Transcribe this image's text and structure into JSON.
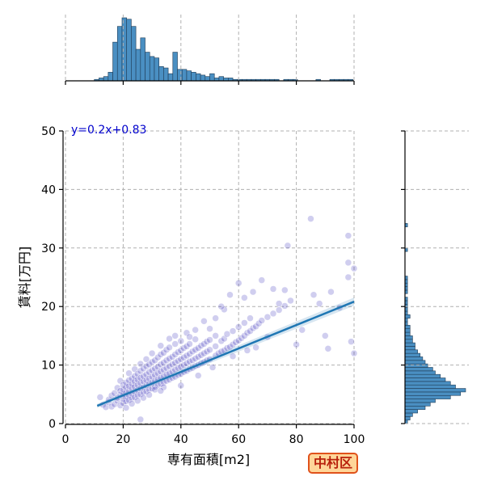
{
  "chart_data": {
    "type": "scatter",
    "xlabel": "専有面積[m2]",
    "ylabel": "賃料[万円]",
    "xlim": [
      0,
      100
    ],
    "ylim": [
      0,
      50
    ],
    "x_ticks": [
      0,
      20,
      40,
      60,
      80,
      100
    ],
    "y_ticks": [
      0,
      10,
      20,
      30,
      40,
      50
    ],
    "grid": true,
    "regression": {
      "slope": 0.2,
      "intercept": 0.83,
      "x_range": [
        11,
        100
      ],
      "label": "y=0.2x+0.83"
    },
    "ward_label": "中村区",
    "points": [
      [
        12,
        4.5
      ],
      [
        13,
        3.2
      ],
      [
        14,
        2.8
      ],
      [
        15,
        3.6
      ],
      [
        15,
        4.1
      ],
      [
        16,
        2.9
      ],
      [
        16,
        4.8
      ],
      [
        17,
        3.3
      ],
      [
        17,
        5.2
      ],
      [
        18,
        3.9
      ],
      [
        18,
        4.4
      ],
      [
        18,
        6.1
      ],
      [
        19,
        3.1
      ],
      [
        19,
        4.9
      ],
      [
        19,
        5.6
      ],
      [
        19,
        7.3
      ],
      [
        20,
        3.5
      ],
      [
        20,
        4.2
      ],
      [
        20,
        5.0
      ],
      [
        20,
        5.8
      ],
      [
        20,
        6.6
      ],
      [
        21,
        3.8
      ],
      [
        21,
        4.6
      ],
      [
        21,
        5.3
      ],
      [
        21,
        6.2
      ],
      [
        21,
        7.0
      ],
      [
        22,
        4.0
      ],
      [
        22,
        4.8
      ],
      [
        22,
        5.5
      ],
      [
        22,
        6.4
      ],
      [
        22,
        7.4
      ],
      [
        22,
        8.6
      ],
      [
        23,
        4.3
      ],
      [
        23,
        5.1
      ],
      [
        23,
        6.0
      ],
      [
        23,
        6.8
      ],
      [
        23,
        7.7
      ],
      [
        24,
        4.5
      ],
      [
        24,
        5.4
      ],
      [
        24,
        6.3
      ],
      [
        24,
        7.2
      ],
      [
        24,
        8.1
      ],
      [
        24,
        9.3
      ],
      [
        25,
        4.8
      ],
      [
        25,
        5.7
      ],
      [
        25,
        6.6
      ],
      [
        25,
        7.5
      ],
      [
        25,
        8.5
      ],
      [
        26,
        5.0
      ],
      [
        26,
        6.0
      ],
      [
        26,
        6.9
      ],
      [
        26,
        7.8
      ],
      [
        26,
        9.0
      ],
      [
        26,
        10.2
      ],
      [
        27,
        5.3
      ],
      [
        27,
        6.2
      ],
      [
        27,
        7.2
      ],
      [
        27,
        8.1
      ],
      [
        27,
        9.4
      ],
      [
        28,
        5.5
      ],
      [
        28,
        6.5
      ],
      [
        28,
        7.4
      ],
      [
        28,
        8.4
      ],
      [
        28,
        9.8
      ],
      [
        28,
        11.0
      ],
      [
        29,
        5.8
      ],
      [
        29,
        6.8
      ],
      [
        29,
        7.7
      ],
      [
        29,
        8.8
      ],
      [
        29,
        10.1
      ],
      [
        30,
        6.0
      ],
      [
        30,
        7.0
      ],
      [
        30,
        8.0
      ],
      [
        30,
        9.1
      ],
      [
        30,
        10.5
      ],
      [
        30,
        12.0
      ],
      [
        31,
        6.3
      ],
      [
        31,
        7.3
      ],
      [
        31,
        8.3
      ],
      [
        31,
        9.4
      ],
      [
        31,
        10.8
      ],
      [
        32,
        6.5
      ],
      [
        32,
        7.6
      ],
      [
        32,
        8.6
      ],
      [
        32,
        9.7
      ],
      [
        32,
        11.3
      ],
      [
        33,
        6.8
      ],
      [
        33,
        7.8
      ],
      [
        33,
        8.9
      ],
      [
        33,
        10.1
      ],
      [
        33,
        11.8
      ],
      [
        33,
        13.3
      ],
      [
        34,
        7.0
      ],
      [
        34,
        8.1
      ],
      [
        34,
        9.2
      ],
      [
        34,
        10.4
      ],
      [
        34,
        12.1
      ],
      [
        35,
        7.3
      ],
      [
        35,
        8.4
      ],
      [
        35,
        9.5
      ],
      [
        35,
        10.8
      ],
      [
        35,
        12.6
      ],
      [
        36,
        7.5
      ],
      [
        36,
        8.6
      ],
      [
        36,
        9.8
      ],
      [
        36,
        11.1
      ],
      [
        36,
        13.0
      ],
      [
        37,
        7.8
      ],
      [
        37,
        8.9
      ],
      [
        37,
        10.1
      ],
      [
        37,
        11.4
      ],
      [
        38,
        8.0
      ],
      [
        38,
        9.2
      ],
      [
        38,
        10.4
      ],
      [
        38,
        11.8
      ],
      [
        38,
        13.6
      ],
      [
        39,
        8.3
      ],
      [
        39,
        9.5
      ],
      [
        39,
        10.7
      ],
      [
        39,
        12.2
      ],
      [
        40,
        8.5
      ],
      [
        40,
        9.7
      ],
      [
        40,
        11.0
      ],
      [
        40,
        12.5
      ],
      [
        40,
        14.1
      ],
      [
        41,
        8.8
      ],
      [
        41,
        10.0
      ],
      [
        41,
        11.3
      ],
      [
        41,
        12.9
      ],
      [
        42,
        9.0
      ],
      [
        42,
        10.3
      ],
      [
        42,
        11.6
      ],
      [
        42,
        13.2
      ],
      [
        43,
        9.3
      ],
      [
        43,
        10.6
      ],
      [
        43,
        11.9
      ],
      [
        43,
        13.6
      ],
      [
        44,
        9.5
      ],
      [
        44,
        10.8
      ],
      [
        44,
        12.3
      ],
      [
        45,
        9.8
      ],
      [
        45,
        11.1
      ],
      [
        45,
        12.6
      ],
      [
        45,
        14.4
      ],
      [
        46,
        10.0
      ],
      [
        46,
        11.4
      ],
      [
        46,
        12.9
      ],
      [
        47,
        10.3
      ],
      [
        47,
        11.7
      ],
      [
        47,
        13.3
      ],
      [
        48,
        10.5
      ],
      [
        48,
        12.0
      ],
      [
        48,
        13.6
      ],
      [
        49,
        10.8
      ],
      [
        49,
        12.3
      ],
      [
        49,
        14.0
      ],
      [
        50,
        11.0
      ],
      [
        50,
        12.6
      ],
      [
        50,
        14.3
      ],
      [
        50,
        16.2
      ],
      [
        52,
        11.6
      ],
      [
        52,
        13.2
      ],
      [
        52,
        15.0
      ],
      [
        53,
        12.0
      ],
      [
        54,
        12.3
      ],
      [
        54,
        14.1
      ],
      [
        55,
        12.5
      ],
      [
        55,
        14.5
      ],
      [
        56,
        12.9
      ],
      [
        56,
        15.3
      ],
      [
        57,
        13.1
      ],
      [
        58,
        13.5
      ],
      [
        58,
        15.8
      ],
      [
        59,
        13.9
      ],
      [
        60,
        14.2
      ],
      [
        60,
        16.5
      ],
      [
        61,
        14.6
      ],
      [
        62,
        15.0
      ],
      [
        62,
        17.2
      ],
      [
        63,
        15.5
      ],
      [
        64,
        15.8
      ],
      [
        64,
        18.0
      ],
      [
        65,
        16.3
      ],
      [
        66,
        16.6
      ],
      [
        67,
        17.1
      ],
      [
        68,
        17.6
      ],
      [
        70,
        18.2
      ],
      [
        72,
        18.8
      ],
      [
        74,
        19.4
      ],
      [
        76,
        20.1
      ],
      [
        55,
        19.5
      ],
      [
        57,
        22.0
      ],
      [
        60,
        24.0
      ],
      [
        62,
        21.5
      ],
      [
        65,
        22.5
      ],
      [
        66,
        13.0
      ],
      [
        68,
        24.5
      ],
      [
        70,
        14.8
      ],
      [
        72,
        23.0
      ],
      [
        74,
        20.5
      ],
      [
        76,
        22.8
      ],
      [
        78,
        21.0
      ],
      [
        80,
        13.5
      ],
      [
        82,
        16.0
      ],
      [
        85,
        35.0
      ],
      [
        88,
        20.5
      ],
      [
        90,
        15.0
      ],
      [
        91,
        12.8
      ],
      [
        92,
        22.5
      ],
      [
        95,
        19.8
      ],
      [
        98,
        32.1
      ],
      [
        98,
        27.5
      ],
      [
        98,
        25.0
      ],
      [
        99,
        14.0
      ],
      [
        100,
        26.5
      ],
      [
        100,
        12.0
      ],
      [
        52,
        18.0
      ],
      [
        54,
        20.0
      ],
      [
        58,
        11.5
      ],
      [
        63,
        12.5
      ],
      [
        45,
        16.0
      ],
      [
        48,
        17.5
      ],
      [
        42,
        15.5
      ],
      [
        38,
        15.0
      ],
      [
        36,
        14.5
      ],
      [
        43,
        14.8
      ],
      [
        77,
        30.4
      ],
      [
        86,
        22.0
      ],
      [
        34,
        6.2
      ],
      [
        31,
        5.8
      ],
      [
        25,
        3.9
      ],
      [
        23,
        3.4
      ],
      [
        21,
        2.7
      ],
      [
        27,
        4.4
      ],
      [
        29,
        4.9
      ],
      [
        33,
        5.6
      ],
      [
        26,
        0.7
      ],
      [
        40,
        6.5
      ],
      [
        46,
        8.2
      ],
      [
        51,
        9.6
      ]
    ],
    "top_hist": {
      "bin_start": 10,
      "bin_width": 1.6,
      "counts": [
        1,
        2,
        3,
        6,
        27,
        38,
        44,
        43,
        38,
        22,
        30,
        20,
        17,
        16,
        10,
        9,
        5,
        20,
        8,
        8,
        7,
        6,
        5,
        4,
        3,
        5,
        2,
        3,
        2,
        2,
        1,
        1,
        1,
        1,
        1,
        1,
        1,
        1,
        1,
        1,
        0,
        1,
        1,
        1,
        0,
        0,
        0,
        0,
        1,
        0,
        0,
        1,
        1,
        1,
        1,
        1
      ]
    },
    "right_hist": {
      "bin_start": 0,
      "bin_width": 0.6,
      "counts": [
        1,
        2,
        3,
        5,
        8,
        10,
        12,
        18,
        22,
        24,
        20,
        18,
        16,
        14,
        12,
        11,
        9,
        8,
        7,
        6,
        5,
        4,
        4,
        3,
        3,
        2,
        2,
        2,
        1,
        1,
        2,
        1,
        1,
        1,
        1,
        1,
        0,
        1,
        1,
        1,
        1,
        1,
        0,
        0,
        0,
        0,
        0,
        0,
        0,
        1,
        0,
        0,
        0,
        0,
        0,
        0,
        1,
        0,
        0,
        0
      ]
    }
  }
}
